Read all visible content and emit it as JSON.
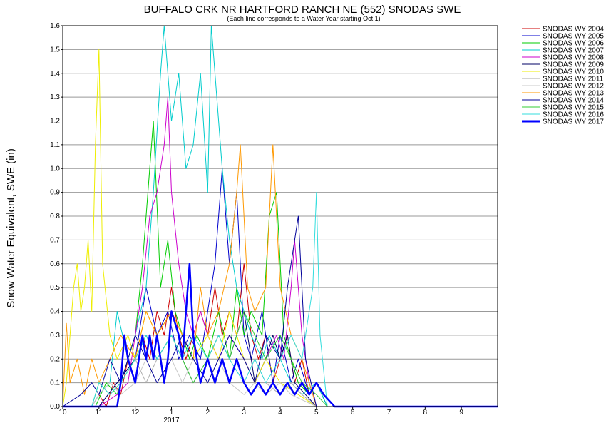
{
  "chart_data": {
    "type": "line",
    "title": "BUFFALO CRK NR HARTFORD RANCH NE (552) SNODAS SWE",
    "subtitle": "(Each line corresponds to a Water Year starting Oct 1)",
    "ylabel": "Snow Water Equivalent, SWE (in)",
    "xlabel": "",
    "year_label": "2017",
    "x_unit": "month",
    "xlim": [
      10,
      22
    ],
    "ylim": [
      0,
      1.6
    ],
    "x_ticks": [
      10,
      11,
      12,
      13,
      14,
      15,
      16,
      17,
      18,
      19,
      20,
      21
    ],
    "x_tick_labels": [
      "10",
      "11",
      "12",
      "1",
      "2",
      "3",
      "4",
      "5",
      "6",
      "7",
      "8",
      "9"
    ],
    "y_ticks": [
      0.0,
      0.1,
      0.2,
      0.3,
      0.4,
      0.5,
      0.6,
      0.7,
      0.8,
      0.9,
      1.0,
      1.1,
      1.2,
      1.3,
      1.4,
      1.5,
      1.6
    ],
    "y_tick_labels": [
      "0.0",
      "0.1",
      "0.2",
      "0.3",
      "0.4",
      "0.5",
      "0.6",
      "0.7",
      "0.8",
      "0.9",
      "1.0",
      "1.1",
      "1.2",
      "1.3",
      "1.4",
      "1.5",
      "1.6"
    ],
    "grid": true,
    "legend_position": "right",
    "series": [
      {
        "name": "SNODAS WY 2004",
        "color": "#cc0000",
        "x": [
          10.0,
          10.8,
          11.0,
          11.2,
          11.4,
          11.6,
          11.8,
          12.0,
          12.2,
          12.4,
          12.6,
          12.8,
          13.0,
          13.2,
          13.4,
          13.6,
          13.8,
          14.0,
          14.2,
          14.4,
          14.6,
          14.8,
          15.0,
          15.2,
          15.4,
          15.6,
          15.8,
          16.0,
          16.2,
          16.4,
          16.6,
          16.8,
          17.0,
          17.3,
          22.0
        ],
        "y": [
          0,
          0,
          0.05,
          0,
          0.1,
          0.05,
          0.2,
          0.1,
          0.3,
          0.2,
          0.4,
          0.3,
          0.5,
          0.3,
          0.2,
          0.3,
          0.4,
          0.3,
          0.5,
          0.3,
          0.4,
          0.3,
          0.6,
          0.3,
          0.2,
          0.3,
          0.1,
          0.2,
          0.3,
          0.1,
          0.2,
          0.05,
          0.1,
          0,
          0
        ]
      },
      {
        "name": "SNODAS WY 2005",
        "color": "#0000cc",
        "x": [
          10.0,
          11.0,
          11.5,
          12.0,
          12.3,
          12.6,
          12.9,
          13.2,
          13.5,
          13.8,
          14.0,
          14.2,
          14.4,
          14.6,
          14.8,
          15.0,
          15.2,
          15.5,
          15.8,
          16.0,
          16.3,
          16.5,
          16.8,
          17.0,
          17.3,
          22.0
        ],
        "y": [
          0,
          0,
          0.1,
          0.2,
          0.5,
          0.3,
          0.4,
          0.2,
          0.3,
          0.2,
          0.4,
          0.6,
          1.0,
          0.6,
          0.9,
          0.3,
          0.2,
          0.4,
          0.1,
          0.3,
          0.1,
          0.2,
          0.05,
          0.1,
          0,
          0
        ]
      },
      {
        "name": "SNODAS WY 2006",
        "color": "#00cc00",
        "x": [
          10.0,
          10.9,
          11.2,
          11.5,
          11.8,
          12.0,
          12.2,
          12.4,
          12.5,
          12.7,
          12.9,
          13.1,
          13.3,
          13.5,
          13.7,
          14.0,
          14.3,
          14.6,
          14.8,
          15.0,
          15.2,
          15.5,
          15.7,
          15.9,
          16.1,
          16.3,
          16.5,
          16.8,
          17.0,
          17.3,
          22.0
        ],
        "y": [
          0,
          0,
          0.1,
          0.05,
          0.2,
          0.3,
          0.6,
          1.0,
          1.2,
          0.5,
          0.7,
          0.4,
          0.3,
          0.2,
          0.3,
          0.2,
          0.4,
          0.2,
          0.5,
          0.3,
          0.4,
          0.3,
          0.8,
          0.9,
          0.3,
          0.2,
          0.1,
          0.05,
          0.1,
          0,
          0
        ]
      },
      {
        "name": "SNODAS WY 2007",
        "color": "#00cccc",
        "x": [
          10.0,
          10.8,
          11.0,
          11.3,
          11.5,
          11.8,
          12.0,
          12.3,
          12.5,
          12.7,
          12.8,
          13.0,
          13.2,
          13.4,
          13.6,
          13.8,
          14.0,
          14.1,
          14.2,
          14.4,
          14.6,
          14.8,
          15.0,
          15.2,
          15.5,
          15.7,
          16.0,
          16.3,
          16.6,
          17.0,
          17.3,
          22.0
        ],
        "y": [
          0,
          0,
          0.05,
          0.1,
          0.4,
          0.2,
          0.3,
          0.5,
          0.9,
          1.4,
          1.6,
          1.2,
          1.4,
          1.0,
          1.1,
          1.4,
          0.9,
          1.6,
          1.4,
          1.0,
          0.7,
          0.5,
          0.4,
          0.3,
          0.2,
          0.3,
          0.2,
          0.1,
          0.05,
          0.1,
          0,
          0
        ]
      },
      {
        "name": "SNODAS WY 2008",
        "color": "#cc00cc",
        "x": [
          10.0,
          11.0,
          11.5,
          11.8,
          12.0,
          12.2,
          12.4,
          12.6,
          12.8,
          12.9,
          13.0,
          13.2,
          13.4,
          13.6,
          13.8,
          14.0,
          14.3,
          14.6,
          15.0,
          15.3,
          15.6,
          15.9,
          16.1,
          16.3,
          16.4,
          16.6,
          16.8,
          17.0,
          22.0
        ],
        "y": [
          0,
          0,
          0.05,
          0.1,
          0.3,
          0.5,
          0.8,
          0.9,
          1.1,
          1.3,
          0.9,
          0.6,
          0.4,
          0.3,
          0.4,
          0.3,
          0.2,
          0.3,
          0.2,
          0.1,
          0.2,
          0.3,
          0.2,
          0.5,
          0.7,
          0.3,
          0.1,
          0,
          0
        ]
      },
      {
        "name": "SNODAS WY 2009",
        "color": "#000066",
        "x": [
          10.0,
          11.0,
          11.5,
          12.0,
          12.3,
          12.6,
          13.0,
          13.3,
          13.6,
          14.0,
          14.3,
          14.6,
          15.0,
          15.3,
          15.6,
          15.8,
          16.0,
          16.2,
          16.4,
          16.7,
          17.0,
          22.0
        ],
        "y": [
          0,
          0,
          0.1,
          0.2,
          0.3,
          0.2,
          0.3,
          0.2,
          0.1,
          0.2,
          0.3,
          0.2,
          0.4,
          0.1,
          0.2,
          0.3,
          0.2,
          0.3,
          0.1,
          0.05,
          0,
          0
        ]
      },
      {
        "name": "SNODAS WY 2010",
        "color": "#eeee00",
        "x": [
          10.0,
          10.1,
          10.2,
          10.3,
          10.4,
          10.5,
          10.6,
          10.7,
          10.8,
          10.9,
          11.0,
          11.1,
          11.3,
          11.5,
          11.8,
          12.0,
          12.3,
          12.6,
          13.0,
          13.3,
          13.6,
          14.0,
          14.3,
          14.6,
          15.0,
          15.3,
          15.6,
          16.0,
          16.5,
          17.0,
          22.0
        ],
        "y": [
          0,
          0.1,
          0.3,
          0.5,
          0.6,
          0.4,
          0.5,
          0.7,
          0.4,
          1.1,
          1.5,
          0.6,
          0.3,
          0.2,
          0.3,
          0.2,
          0.4,
          0.3,
          0.4,
          0.3,
          0.2,
          0.3,
          0.2,
          0.4,
          0.2,
          0.1,
          0.2,
          0.1,
          0.05,
          0,
          0
        ]
      },
      {
        "name": "SNODAS WY 2011",
        "color": "#aaaaaa",
        "x": [
          10.0,
          10.8,
          11.0,
          11.3,
          11.6,
          12.0,
          12.3,
          12.6,
          13.0,
          13.3,
          13.6,
          14.0,
          14.3,
          14.6,
          15.0,
          15.3,
          15.6,
          16.0,
          16.3,
          16.6,
          17.0,
          22.0
        ],
        "y": [
          0,
          0,
          0.1,
          0.05,
          0.1,
          0.2,
          0.1,
          0.2,
          0.3,
          0.2,
          0.1,
          0.2,
          0.3,
          0.2,
          0.1,
          0.2,
          0.1,
          0.05,
          0.1,
          0.05,
          0,
          0
        ]
      },
      {
        "name": "SNODAS WY 2012",
        "color": "#c8c8c8",
        "x": [
          10.0,
          10.8,
          11.0,
          11.3,
          11.6,
          12.0,
          12.3,
          12.6,
          13.0,
          13.3,
          13.6,
          14.0,
          14.3,
          14.6,
          15.0,
          15.3,
          15.6,
          16.0,
          16.3,
          17.0,
          22.0
        ],
        "y": [
          0,
          0,
          0.05,
          0.1,
          0.05,
          0.1,
          0.2,
          0.1,
          0.2,
          0.1,
          0.2,
          0.1,
          0.2,
          0.1,
          0.05,
          0.1,
          0.05,
          0.1,
          0.05,
          0,
          0
        ]
      },
      {
        "name": "SNODAS WY 2013",
        "color": "#ff9900",
        "x": [
          10.0,
          10.1,
          10.2,
          10.4,
          10.6,
          10.8,
          11.0,
          11.3,
          11.6,
          12.0,
          12.3,
          12.6,
          13.0,
          13.3,
          13.6,
          13.8,
          14.0,
          14.3,
          14.6,
          14.8,
          14.9,
          15.1,
          15.3,
          15.6,
          15.8,
          16.0,
          16.3,
          16.6,
          16.8,
          17.0,
          22.0
        ],
        "y": [
          0,
          0.35,
          0.1,
          0.2,
          0.05,
          0.2,
          0.1,
          0.2,
          0.3,
          0.2,
          0.4,
          0.3,
          0.4,
          0.3,
          0.2,
          0.5,
          0.3,
          0.4,
          0.6,
          0.9,
          1.1,
          0.5,
          0.4,
          0.5,
          1.1,
          0.5,
          0.3,
          0.2,
          0.1,
          0,
          0
        ]
      },
      {
        "name": "SNODAS WY 2014",
        "color": "#000099",
        "x": [
          10.0,
          10.5,
          10.8,
          11.0,
          11.3,
          11.6,
          12.0,
          12.3,
          12.6,
          13.0,
          13.3,
          13.6,
          14.0,
          14.3,
          14.6,
          15.0,
          15.3,
          15.6,
          16.0,
          16.2,
          16.4,
          16.5,
          16.7,
          17.0,
          22.0
        ],
        "y": [
          0,
          0.05,
          0.1,
          0.05,
          0.2,
          0.1,
          0.3,
          0.2,
          0.1,
          0.2,
          0.3,
          0.2,
          0.1,
          0.2,
          0.3,
          0.2,
          0.1,
          0.3,
          0.2,
          0.5,
          0.7,
          0.8,
          0.2,
          0,
          0
        ]
      },
      {
        "name": "SNODAS WY 2015",
        "color": "#33cc33",
        "x": [
          10.0,
          10.8,
          11.0,
          11.3,
          11.6,
          12.0,
          12.3,
          12.6,
          13.0,
          13.3,
          13.6,
          14.0,
          14.3,
          14.6,
          15.0,
          15.3,
          15.6,
          16.0,
          16.3,
          16.6,
          17.0,
          17.3,
          22.0
        ],
        "y": [
          0,
          0,
          0.1,
          0.05,
          0.1,
          0.2,
          0.3,
          0.2,
          0.3,
          0.2,
          0.1,
          0.2,
          0.3,
          0.2,
          0.4,
          0.3,
          0.2,
          0.3,
          0.2,
          0.1,
          0.05,
          0,
          0
        ]
      },
      {
        "name": "SNODAS WY 2016",
        "color": "#33dddd",
        "x": [
          10.0,
          10.8,
          11.0,
          11.3,
          11.6,
          12.0,
          12.3,
          12.6,
          13.0,
          13.3,
          13.6,
          14.0,
          14.3,
          14.6,
          15.0,
          15.3,
          15.6,
          16.0,
          16.3,
          16.6,
          16.9,
          17.0,
          17.1,
          17.3,
          22.0
        ],
        "y": [
          0,
          0,
          0.1,
          0.05,
          0.1,
          0.2,
          0.3,
          0.2,
          0.3,
          0.2,
          0.3,
          0.2,
          0.3,
          0.2,
          0.1,
          0.2,
          0.1,
          0.2,
          0.3,
          0.2,
          0.5,
          0.9,
          0.3,
          0,
          0
        ]
      },
      {
        "name": "SNODAS WY 2017",
        "color": "#0000ff",
        "x": [
          10.0,
          11.5,
          11.6,
          11.7,
          11.8,
          12.0,
          12.2,
          12.3,
          12.4,
          12.5,
          12.6,
          12.8,
          12.9,
          13.0,
          13.2,
          13.3,
          13.4,
          13.5,
          13.6,
          13.7,
          13.8,
          14.0,
          14.2,
          14.4,
          14.6,
          14.8,
          15.0,
          15.2,
          15.4,
          15.6,
          15.8,
          16.0,
          16.2,
          16.4,
          16.6,
          16.8,
          17.0,
          17.2,
          17.5,
          22.0
        ],
        "y": [
          0,
          0,
          0.1,
          0.3,
          0.2,
          0.1,
          0.3,
          0.2,
          0.3,
          0.2,
          0.3,
          0.1,
          0.2,
          0.4,
          0.3,
          0.2,
          0.4,
          0.6,
          0.3,
          0.2,
          0.1,
          0.2,
          0.1,
          0.2,
          0.1,
          0.2,
          0.1,
          0.05,
          0.1,
          0.05,
          0.1,
          0.05,
          0.1,
          0.05,
          0.1,
          0.05,
          0.1,
          0.05,
          0,
          0
        ]
      }
    ]
  }
}
